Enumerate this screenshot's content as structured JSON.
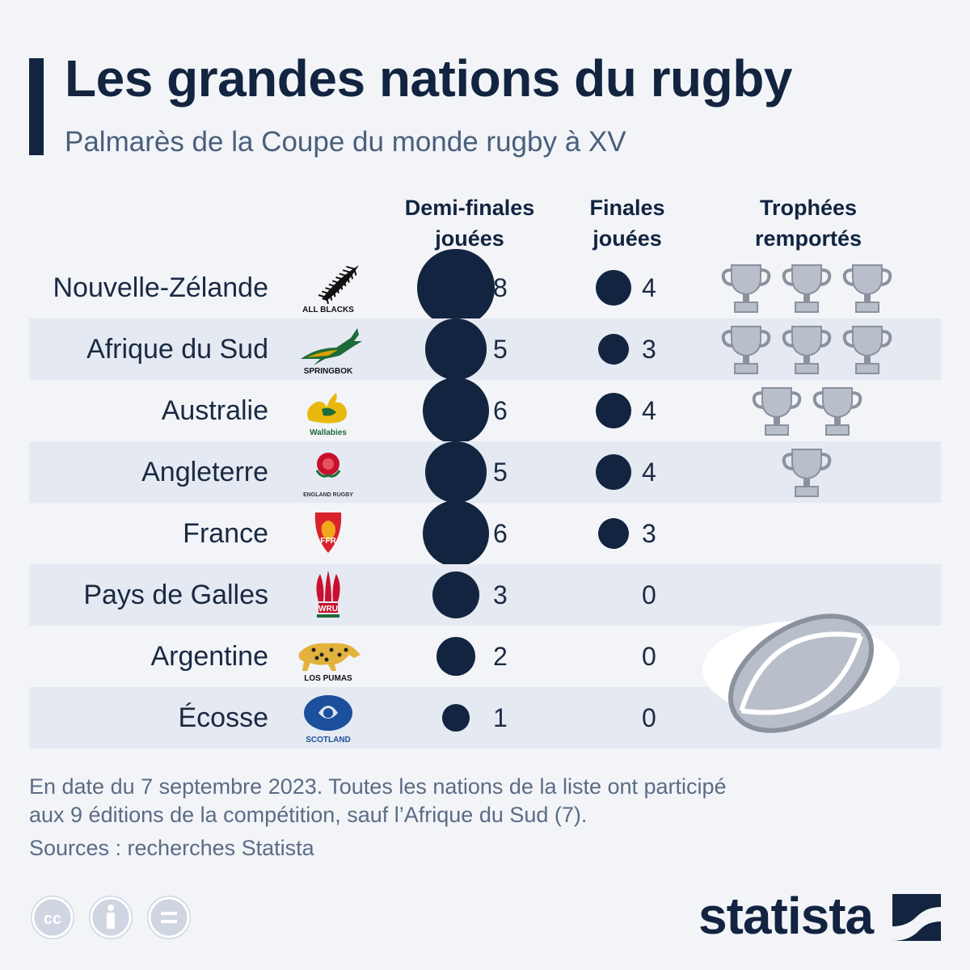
{
  "title": "Les grandes nations du rugby",
  "subtitle": "Palmarès de la Coupe du monde rugby à XV",
  "columns": {
    "semis_line1": "Demi-finales",
    "semis_line2": "jouées",
    "finals_line1": "Finales",
    "finals_line2": "jouées",
    "trophies_line1": "Trophées",
    "trophies_line2": "remportés"
  },
  "chart_data": {
    "type": "table",
    "columns": [
      "Demi-finales jouées",
      "Finales jouées",
      "Trophées remportés"
    ],
    "rows": [
      {
        "country": "Nouvelle-Zélande",
        "logo": "all-blacks-fern",
        "logo_text": "ALL BLACKS",
        "semis": 8,
        "finals": 4,
        "trophies": 3
      },
      {
        "country": "Afrique du Sud",
        "logo": "springbok",
        "logo_text": "SPRINGBOK",
        "semis": 5,
        "finals": 3,
        "trophies": 3
      },
      {
        "country": "Australie",
        "logo": "wallabies",
        "logo_text": "Wallabies",
        "semis": 6,
        "finals": 4,
        "trophies": 2
      },
      {
        "country": "Angleterre",
        "logo": "england-rose",
        "logo_text": "ENGLAND RUGBY",
        "semis": 5,
        "finals": 4,
        "trophies": 1
      },
      {
        "country": "France",
        "logo": "ffr-rooster",
        "logo_text": "FFR",
        "semis": 6,
        "finals": 3,
        "trophies": 0
      },
      {
        "country": "Pays de Galles",
        "logo": "wru-feathers",
        "logo_text": "WRU",
        "semis": 3,
        "finals": 0,
        "trophies": 0
      },
      {
        "country": "Argentine",
        "logo": "los-pumas",
        "logo_text": "LOS PUMAS",
        "semis": 2,
        "finals": 0,
        "trophies": 0
      },
      {
        "country": "Écosse",
        "logo": "scotland-thistle",
        "logo_text": "SCOTLAND",
        "semis": 1,
        "finals": 0,
        "trophies": 0
      }
    ]
  },
  "footnote_line1": "En date du 7 septembre 2023. Toutes les nations de la liste ont participé",
  "footnote_line2": "aux 9 éditions de la compétition, sauf l’Afrique du Sud (7).",
  "source": "Sources : recherches Statista",
  "brand": "statista",
  "colors": {
    "navy": "#12243f",
    "stripe": "#e5e9f2",
    "trophy": "#b8bfca",
    "background": "#f2f4f8"
  },
  "icons": [
    "cc-icon",
    "attribution-icon",
    "no-derivatives-icon",
    "trophy-icon",
    "rugby-ball-icon",
    "statista-logo-icon"
  ]
}
